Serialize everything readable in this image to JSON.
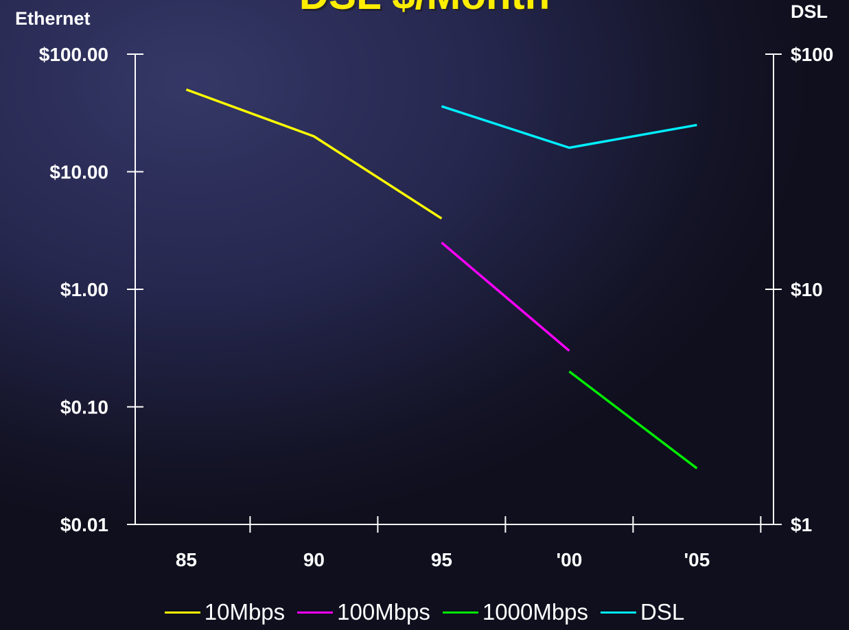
{
  "chart_data": {
    "type": "line",
    "title": "DSL $/Month",
    "left_axis_title": "Ethernet",
    "right_axis_title": "DSL",
    "categories": [
      "85",
      "90",
      "95",
      "'00",
      "'05"
    ],
    "x": [
      1985,
      1990,
      1995,
      2000,
      2005
    ],
    "xlim": [
      1983,
      2008
    ],
    "y_left": {
      "scale": "log",
      "ylim": [
        0.01,
        100
      ],
      "ticks": [
        100,
        10,
        1,
        0.1,
        0.01
      ],
      "tick_labels": [
        "$100.00",
        "$10.00",
        "$1.00",
        "$0.10",
        "$0.01"
      ]
    },
    "y_right": {
      "scale": "log",
      "ylim": [
        1,
        100
      ],
      "ticks": [
        100,
        10,
        1
      ],
      "tick_labels": [
        "$100",
        "$10",
        "$1"
      ]
    },
    "grid": false,
    "legend_position": "bottom",
    "series": [
      {
        "name": "10Mbps",
        "axis": "left",
        "color": "#ffff00",
        "points": [
          [
            1985,
            50
          ],
          [
            1990,
            20
          ],
          [
            1995,
            4
          ]
        ]
      },
      {
        "name": "100Mbps",
        "axis": "left",
        "color": "#ff00ff",
        "points": [
          [
            1995,
            2.5
          ],
          [
            2000,
            0.3
          ]
        ]
      },
      {
        "name": "1000Mbps",
        "axis": "left",
        "color": "#00ee00",
        "points": [
          [
            2000,
            0.2
          ],
          [
            2005,
            0.03
          ]
        ]
      },
      {
        "name": "DSL",
        "axis": "right",
        "color": "#00eeff",
        "points": [
          [
            1995,
            60
          ],
          [
            2000,
            40
          ],
          [
            2005,
            50
          ]
        ]
      }
    ]
  }
}
